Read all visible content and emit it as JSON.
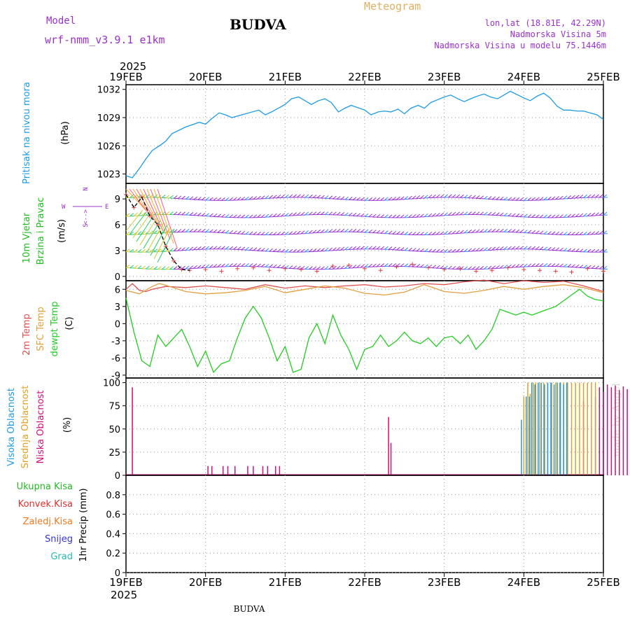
{
  "header": {
    "model_label": "Model",
    "model_name": "wrf-nmm_v3.9.1 e1km",
    "title": "BUDVA",
    "meteogram_label": "Meteogram",
    "lonlat": "lon,lat (18.81E, 42.29N)",
    "altitude": "Nadmorska Visina 5m",
    "model_altitude": "Nadmorska Visina u modelu 75.1446m",
    "bottom_title": "BUDVA",
    "watermark": "made by Angel"
  },
  "colors": {
    "pressure": "#1e9be6",
    "temp2m": "#e05050",
    "sfc_temp": "#e0a040",
    "dewpoint": "#22cc22",
    "cloud_high": "#1e9be6",
    "cloud_mid": "#e0a020",
    "cloud_low": "#cc1177",
    "wind_barbs": "#9b30d0",
    "purple_text": "#9b30d0",
    "green_text": "#22bb22",
    "red_text": "#e03030",
    "orange_text": "#f07a20",
    "blue_text": "#3333dd",
    "cyan_text": "#22bbbb",
    "yellow_text": "#e0b060"
  },
  "chart_data": [
    {
      "type": "line",
      "panel": "pressure",
      "year_label": "2025",
      "x_ticks": [
        "19FEB",
        "20FEB",
        "21FEB",
        "22FEB",
        "23FEB",
        "24FEB",
        "25FEB"
      ],
      "x_range": [
        "2025-02-19",
        "2025-02-25"
      ],
      "ylabel_left": "Pritisak na nivou mora",
      "ylabel_unit": "(hPa)",
      "ylim": [
        1022,
        1032.5
      ],
      "yticks": [
        1023,
        1026,
        1029,
        1032
      ],
      "grid": true,
      "series": [
        {
          "color": "pressure",
          "x_days": [
            0,
            0.08,
            0.17,
            0.25,
            0.33,
            0.42,
            0.5,
            0.58,
            0.75,
            0.92,
            1.0,
            1.08,
            1.17,
            1.25,
            1.33,
            1.5,
            1.67,
            1.75,
            1.83,
            2.0,
            2.08,
            2.17,
            2.25,
            2.33,
            2.42,
            2.5,
            2.58,
            2.67,
            2.75,
            2.83,
            3.0,
            3.08,
            3.17,
            3.25,
            3.33,
            3.42,
            3.5,
            3.58,
            3.67,
            3.75,
            3.83,
            4.0,
            4.08,
            4.17,
            4.25,
            4.33,
            4.42,
            4.5,
            4.58,
            4.67,
            4.75,
            4.83,
            5.0,
            5.08,
            5.17,
            5.25,
            5.33,
            5.42,
            5.5,
            5.58,
            5.67,
            5.75,
            5.83,
            5.92,
            6.0
          ],
          "values": [
            1022.8,
            1022.6,
            1023.6,
            1024.6,
            1025.5,
            1026.0,
            1026.5,
            1027.3,
            1028.0,
            1028.5,
            1028.3,
            1028.9,
            1029.5,
            1029.3,
            1029.0,
            1029.4,
            1029.8,
            1029.3,
            1029.6,
            1030.4,
            1031.0,
            1031.2,
            1030.8,
            1030.4,
            1030.8,
            1031.0,
            1030.6,
            1029.6,
            1030.0,
            1030.3,
            1029.8,
            1029.3,
            1029.6,
            1029.7,
            1029.6,
            1029.9,
            1029.4,
            1030.0,
            1030.3,
            1030.0,
            1030.6,
            1031.2,
            1031.4,
            1031.0,
            1030.7,
            1031.0,
            1031.3,
            1031.5,
            1031.2,
            1031.0,
            1031.4,
            1031.8,
            1031.1,
            1030.8,
            1031.3,
            1031.6,
            1031.1,
            1030.2,
            1029.8,
            1029.8,
            1029.7,
            1029.7,
            1029.5,
            1029.3,
            1028.8
          ]
        }
      ]
    },
    {
      "type": "scatter",
      "panel": "wind",
      "ylabel_left1": "10m Vjetar",
      "ylabel_left2": "Brzina i Pravac",
      "ylabel_unit": "(m/s)",
      "compass": {
        "n": "N",
        "w": "W",
        "e": "E",
        "s": "S",
        "hint": "<-->"
      },
      "ylim": [
        -0.5,
        10.8
      ],
      "yticks": [
        0,
        3,
        6,
        9
      ],
      "grid": true,
      "barb_levels_ms": [
        1,
        3,
        5,
        7,
        9,
        11
      ],
      "series": [
        {
          "name": "",
          "x_days": [
            0,
            0.1,
            0.2,
            0.3,
            0.4,
            0.5,
            0.6,
            0.7,
            0.8,
            1.0,
            1.2,
            1.4,
            1.6,
            1.8,
            2.0,
            2.2,
            2.4,
            2.6,
            2.8,
            3.0,
            3.2,
            3.4,
            3.6,
            3.8,
            4.0,
            4.2,
            4.4,
            4.6,
            4.8,
            5.0,
            5.2,
            5.4,
            5.6,
            5.8,
            6.0
          ],
          "values": [
            9.5,
            8.0,
            9.2,
            7.0,
            6.0,
            3.5,
            1.8,
            0.8,
            0.7,
            0.8,
            0.6,
            0.9,
            1.0,
            0.7,
            0.9,
            0.8,
            0.6,
            1.2,
            1.3,
            0.9,
            0.7,
            1.1,
            1.4,
            1.0,
            0.8,
            0.9,
            0.6,
            0.7,
            1.0,
            0.8,
            0.7,
            0.6,
            0.5,
            0.9,
            0.6
          ]
        }
      ]
    },
    {
      "type": "line",
      "panel": "temperature",
      "ylabel_left1": "2m Temp",
      "ylabel_left2": "SFC Temp",
      "ylabel_left3": "dewpt Temp",
      "ylabel_unit": "(C)",
      "ylim": [
        -9.5,
        7.5
      ],
      "yticks": [
        6,
        3,
        0,
        -3,
        -6,
        -9
      ],
      "grid": true,
      "series": [
        {
          "color": "temp2m",
          "x_days": [
            0,
            0.08,
            0.17,
            0.25,
            0.33,
            0.5,
            0.75,
            1.0,
            1.25,
            1.5,
            1.75,
            2.0,
            2.25,
            2.5,
            2.75,
            3.0,
            3.25,
            3.5,
            3.75,
            4.0,
            4.25,
            4.5,
            4.75,
            5.0,
            5.25,
            5.5,
            5.75,
            6.0
          ],
          "values": [
            6.0,
            7.0,
            5.8,
            5.6,
            6.0,
            6.5,
            6.3,
            6.6,
            6.3,
            6.0,
            6.8,
            6.2,
            6.6,
            6.3,
            6.6,
            6.8,
            6.4,
            6.6,
            7.0,
            6.8,
            7.3,
            7.6,
            7.0,
            7.5,
            7.2,
            7.4,
            6.6,
            5.6
          ]
        },
        {
          "color": "sfc_temp",
          "x_days": [
            0,
            0.17,
            0.33,
            0.42,
            0.5,
            0.75,
            1.0,
            1.25,
            1.5,
            1.75,
            2.0,
            2.25,
            2.5,
            2.75,
            3.0,
            3.25,
            3.5,
            3.75,
            4.0,
            4.25,
            4.5,
            4.75,
            5.0,
            5.25,
            5.5,
            5.75,
            6.0
          ],
          "values": [
            5.8,
            5.2,
            6.5,
            7.0,
            6.7,
            5.6,
            5.2,
            5.4,
            5.8,
            6.5,
            5.4,
            6.0,
            6.6,
            6.2,
            5.3,
            5.0,
            5.5,
            6.8,
            5.6,
            5.3,
            5.8,
            6.5,
            6.0,
            6.5,
            6.8,
            6.3,
            5.4
          ]
        },
        {
          "color": "dewpoint",
          "x_days": [
            0,
            0.1,
            0.2,
            0.3,
            0.4,
            0.5,
            0.6,
            0.7,
            0.8,
            0.9,
            1.0,
            1.1,
            1.2,
            1.3,
            1.4,
            1.5,
            1.6,
            1.7,
            1.8,
            1.9,
            2.0,
            2.1,
            2.2,
            2.3,
            2.4,
            2.5,
            2.6,
            2.7,
            2.8,
            2.9,
            3.0,
            3.1,
            3.2,
            3.3,
            3.4,
            3.5,
            3.6,
            3.7,
            3.8,
            3.9,
            4.0,
            4.1,
            4.2,
            4.3,
            4.4,
            4.5,
            4.6,
            4.7,
            4.8,
            4.9,
            5.0,
            5.1,
            5.2,
            5.3,
            5.4,
            5.5,
            5.6,
            5.7,
            5.8,
            5.9,
            6.0
          ],
          "values": [
            4.5,
            -1.5,
            -6.5,
            -7.5,
            -2.0,
            -4.0,
            -2.5,
            -1.0,
            -4.0,
            -7.5,
            -4.8,
            -8.5,
            -7.0,
            -6.5,
            -2.5,
            1.0,
            3.0,
            1.0,
            -2.5,
            -6.5,
            -4.0,
            -8.5,
            -8.0,
            -2.5,
            0.0,
            -3.5,
            1.5,
            -2.0,
            -4.5,
            -8.0,
            -4.5,
            -4.0,
            -2.0,
            -4.0,
            -3.0,
            -1.5,
            -3.0,
            -3.5,
            -2.5,
            -4.0,
            -2.5,
            -2.2,
            -3.5,
            -2.0,
            -4.5,
            -3.0,
            -1.0,
            2.5,
            2.0,
            1.5,
            2.0,
            1.5,
            2.0,
            2.5,
            3.0,
            4.0,
            5.0,
            6.0,
            4.8,
            4.2,
            4.0
          ]
        }
      ]
    },
    {
      "type": "bar",
      "panel": "clouds",
      "ylabel_left1": "Visoka Oblacnost",
      "ylabel_left2": "Srednja Oblacnost",
      "ylabel_left3": "Niska Oblacnost",
      "ylabel_unit": "(%)",
      "ylim": [
        0,
        105
      ],
      "yticks": [
        0,
        25,
        50,
        75,
        100
      ],
      "grid": true,
      "series": [
        {
          "name": "Niska Oblacnost",
          "color": "cloud_low",
          "x_days": [
            0.08,
            1.03,
            1.08,
            1.22,
            1.28,
            1.37,
            1.53,
            1.6,
            1.72,
            1.78,
            1.88,
            1.93,
            3.3,
            3.33,
            5.75,
            5.9,
            5.95,
            6.0,
            6.05,
            6.1,
            6.15,
            6.2,
            6.25,
            6.3,
            6.35,
            6.4,
            6.45,
            6.52,
            6.57,
            6.75,
            6.8
          ],
          "values": [
            95,
            10,
            10,
            10,
            10,
            10,
            10,
            10,
            10,
            10,
            10,
            10,
            63,
            35,
            80,
            85,
            95,
            90,
            98,
            95,
            97,
            92,
            96,
            93,
            90,
            92,
            88,
            94,
            90,
            45,
            10
          ]
        },
        {
          "name": "Srednja Oblacnost",
          "color": "cloud_mid",
          "x_days": [
            5.0,
            5.05,
            5.08,
            5.12,
            5.15,
            5.2,
            5.25,
            5.3,
            5.35,
            5.4,
            5.45,
            5.5,
            5.55,
            5.6,
            5.65,
            5.7,
            5.75,
            5.8,
            5.85,
            5.9
          ],
          "values": [
            85,
            100,
            88,
            100,
            100,
            100,
            100,
            100,
            100,
            100,
            100,
            100,
            100,
            100,
            100,
            100,
            100,
            100,
            100,
            100
          ]
        },
        {
          "name": "Visoka Oblacnost",
          "color": "cloud_high",
          "x_days": [
            4.97,
            5.03,
            5.07,
            5.1,
            5.14,
            5.18,
            5.22,
            5.26,
            5.3,
            5.34,
            5.38,
            5.42,
            5.46,
            5.5,
            5.54
          ],
          "values": [
            60,
            85,
            85,
            100,
            98,
            100,
            100,
            98,
            100,
            100,
            98,
            100,
            100,
            98,
            100
          ]
        }
      ]
    },
    {
      "type": "bar",
      "panel": "precip",
      "ylabel_unit": "1hr Precip (mm)",
      "legend": [
        "Ukupna Kisa",
        "Konvek.Kisa",
        "Zaledj.Kisa",
        "Snijeg",
        "Grad"
      ],
      "ylim": [
        0,
        1.0
      ],
      "yticks": [
        "0",
        "0.2",
        "0.4",
        "0.6",
        "0.8"
      ],
      "grid": true,
      "x_ticks": [
        "19FEB",
        "20FEB",
        "21FEB",
        "22FEB",
        "23FEB",
        "24FEB",
        "25FEB"
      ],
      "year_label": "2025",
      "series": []
    }
  ]
}
